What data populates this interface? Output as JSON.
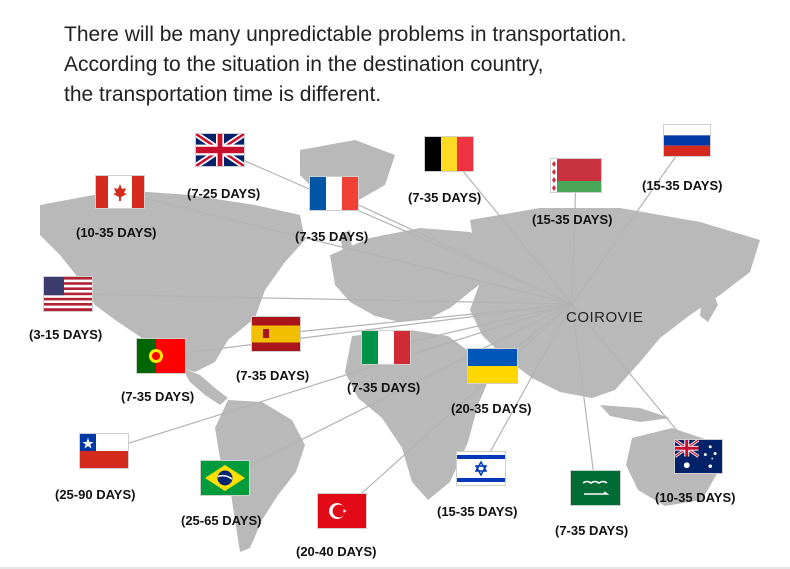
{
  "header": {
    "line1": "There will be many unpredictable problems in transportation.",
    "line2": "According to the situation in the destination country,",
    "line3": "the transportation time is different."
  },
  "brand": "COIROVIE",
  "colors": {
    "map_land": "#b9b9b9",
    "lines": "#b3b3b3",
    "text": "#111111"
  },
  "destinations": [
    {
      "country": "United Kingdom",
      "flag_icon": "uk-flag-icon",
      "days": "(7-25 DAYS)"
    },
    {
      "country": "Canada",
      "flag_icon": "canada-flag-icon",
      "days": "(10-35 DAYS)"
    },
    {
      "country": "France",
      "flag_icon": "france-flag-icon",
      "days": "(7-35 DAYS)"
    },
    {
      "country": "Belgium",
      "flag_icon": "belgium-flag-icon",
      "days": "(7-35 DAYS)"
    },
    {
      "country": "Belarus",
      "flag_icon": "belarus-flag-icon",
      "days": "(15-35 DAYS)"
    },
    {
      "country": "Russia",
      "flag_icon": "russia-flag-icon",
      "days": "(15-35 DAYS)"
    },
    {
      "country": "United States",
      "flag_icon": "usa-flag-icon",
      "days": "(3-15 DAYS)"
    },
    {
      "country": "Spain",
      "flag_icon": "spain-flag-icon",
      "days": "(7-35 DAYS)"
    },
    {
      "country": "Portugal",
      "flag_icon": "portugal-flag-icon",
      "days": "(7-35 DAYS)"
    },
    {
      "country": "Italy",
      "flag_icon": "italy-flag-icon",
      "days": "(7-35 DAYS)"
    },
    {
      "country": "Ukraine",
      "flag_icon": "ukraine-flag-icon",
      "days": "(20-35 DAYS)"
    },
    {
      "country": "Chile",
      "flag_icon": "chile-flag-icon",
      "days": "(25-90 DAYS)"
    },
    {
      "country": "Brazil",
      "flag_icon": "brazil-flag-icon",
      "days": "(25-65 DAYS)"
    },
    {
      "country": "Israel",
      "flag_icon": "israel-flag-icon",
      "days": "(15-35 DAYS)"
    },
    {
      "country": "Saudi Arabia",
      "flag_icon": "saudi-flag-icon",
      "days": "(7-35 DAYS)"
    },
    {
      "country": "Australia",
      "flag_icon": "australia-flag-icon",
      "days": "(10-35 DAYS)"
    },
    {
      "country": "Turkey",
      "flag_icon": "turkey-flag-icon",
      "days": "(20-40 DAYS)"
    }
  ]
}
